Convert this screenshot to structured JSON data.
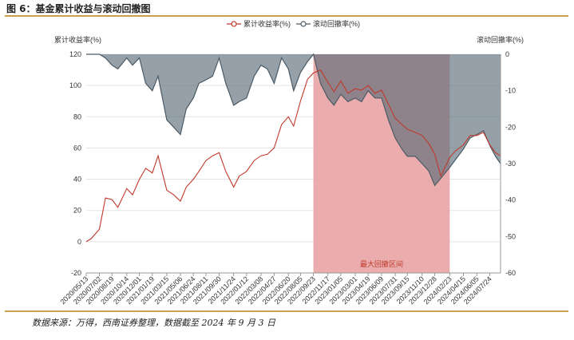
{
  "figure": {
    "title": "图 6：基金累计收益与滚动回撤图",
    "source": "数据来源：万得，西南证券整理，数据截至 2024 年 9 月 3 日"
  },
  "chart_data": {
    "type": "line",
    "legend_position": "top-center",
    "grid": true,
    "left_axis": {
      "label": "累计收益率(%)",
      "ticks": [
        "120",
        "100",
        "80",
        "60",
        "40",
        "20",
        "0",
        "-20"
      ],
      "range": [
        -20,
        120
      ]
    },
    "right_axis": {
      "label": "滚动回撤率(%)",
      "ticks": [
        "0",
        "-10",
        "-20",
        "-30",
        "-40",
        "-50",
        "-60"
      ],
      "range": [
        -60,
        0
      ]
    },
    "x_labels": [
      "2020/05/13",
      "2020/07/02",
      "2020/08/19",
      "2020/10/14",
      "2020/12/01",
      "2021/01/19",
      "2021/03/15",
      "2021/05/06",
      "2021/06/24",
      "2021/08/11",
      "2021/09/30",
      "2021/11/24",
      "2022/01/12",
      "2022/03/08",
      "2022/04/27",
      "2022/06/20",
      "2022/08/05",
      "2022/09/23",
      "2022/11/17",
      "2023/01/05",
      "2023/03/01",
      "2023/04/19",
      "2023/06/09",
      "2023/07/31",
      "2023/09/15",
      "2023/11/10",
      "2023/12/28",
      "2024/02/23",
      "2024/04/15",
      "2024/06/05",
      "2024/07/24"
    ],
    "series": [
      {
        "name": "累计收益率(%)",
        "color": "#c0392b",
        "axis": "left",
        "x": [
          "2020/05/13",
          "2020/06/01",
          "2020/07/02",
          "2020/07/25",
          "2020/08/19",
          "2020/09/10",
          "2020/10/14",
          "2020/11/05",
          "2020/12/01",
          "2020/12/25",
          "2021/01/19",
          "2021/02/10",
          "2021/03/15",
          "2021/04/10",
          "2021/05/06",
          "2021/05/28",
          "2021/06/24",
          "2021/07/15",
          "2021/08/11",
          "2021/09/05",
          "2021/09/30",
          "2021/10/25",
          "2021/11/24",
          "2021/12/15",
          "2022/01/12",
          "2022/02/10",
          "2022/03/08",
          "2022/04/01",
          "2022/04/27",
          "2022/05/25",
          "2022/06/20",
          "2022/07/10",
          "2022/08/05",
          "2022/09/01",
          "2022/09/23",
          "2022/10/20",
          "2022/11/17",
          "2022/12/10",
          "2023/01/05",
          "2023/02/01",
          "2023/03/01",
          "2023/03/25",
          "2023/04/19",
          "2023/05/15",
          "2023/06/09",
          "2023/07/05",
          "2023/07/31",
          "2023/08/25",
          "2023/09/15",
          "2023/10/15",
          "2023/11/10",
          "2023/12/05",
          "2023/12/28",
          "2024/01/20",
          "2024/02/23",
          "2024/03/15",
          "2024/04/15",
          "2024/05/10",
          "2024/06/05",
          "2024/06/30",
          "2024/07/24",
          "2024/08/15",
          "2024/09/03"
        ],
        "values": [
          0,
          2,
          8,
          28,
          27,
          22,
          34,
          30,
          40,
          47,
          44,
          55,
          33,
          30,
          26,
          35,
          40,
          45,
          52,
          55,
          57,
          45,
          35,
          42,
          45,
          52,
          55,
          56,
          60,
          75,
          80,
          74,
          90,
          104,
          108,
          110,
          102,
          96,
          103,
          95,
          98,
          97,
          100,
          95,
          97,
          88,
          79,
          75,
          72,
          70,
          68,
          63,
          56,
          42,
          54,
          58,
          62,
          68,
          68,
          70,
          62,
          57,
          55
        ]
      },
      {
        "name": "滚动回撤率(%)",
        "color": "#4d5b66",
        "axis": "right",
        "x": [
          "2020/05/13",
          "2020/06/01",
          "2020/07/02",
          "2020/07/25",
          "2020/08/19",
          "2020/09/10",
          "2020/10/14",
          "2020/11/05",
          "2020/12/01",
          "2020/12/25",
          "2021/01/19",
          "2021/02/10",
          "2021/03/15",
          "2021/04/10",
          "2021/05/06",
          "2021/05/28",
          "2021/06/24",
          "2021/07/15",
          "2021/08/11",
          "2021/09/05",
          "2021/09/30",
          "2021/10/25",
          "2021/11/24",
          "2021/12/15",
          "2022/01/12",
          "2022/02/10",
          "2022/03/08",
          "2022/04/01",
          "2022/04/27",
          "2022/05/25",
          "2022/06/20",
          "2022/07/10",
          "2022/08/05",
          "2022/09/01",
          "2022/09/23",
          "2022/10/20",
          "2022/11/17",
          "2022/12/10",
          "2023/01/05",
          "2023/02/01",
          "2023/03/01",
          "2023/03/25",
          "2023/04/19",
          "2023/05/15",
          "2023/06/09",
          "2023/07/05",
          "2023/07/31",
          "2023/08/25",
          "2023/09/15",
          "2023/10/15",
          "2023/11/10",
          "2023/12/05",
          "2023/12/28",
          "2024/01/20",
          "2024/02/23",
          "2024/03/15",
          "2024/04/15",
          "2024/05/10",
          "2024/06/05",
          "2024/06/30",
          "2024/07/24",
          "2024/08/15",
          "2024/09/03"
        ],
        "values": [
          0,
          0,
          0,
          -1,
          -3,
          -4,
          -1,
          -3,
          -1,
          -8,
          -10,
          -6,
          -18,
          -20,
          -22,
          -15,
          -12,
          -8,
          -7,
          -6,
          -1,
          -8,
          -14,
          -13,
          -12,
          -6,
          -3,
          -4,
          -8,
          -1,
          -4,
          -10,
          -5,
          -2,
          0,
          -8,
          -12,
          -14,
          -11,
          -13,
          -12,
          -13,
          -10,
          -12,
          -12,
          -18,
          -23,
          -26,
          -28,
          -28,
          -30,
          -32,
          -36,
          -34,
          -31,
          -29,
          -26,
          -23,
          -22,
          -21,
          -25,
          -28,
          -30
        ]
      }
    ],
    "max_drawdown_period": {
      "label": "最大回撤区间",
      "start": "2022/09/23",
      "end": "2024/02/23"
    }
  }
}
